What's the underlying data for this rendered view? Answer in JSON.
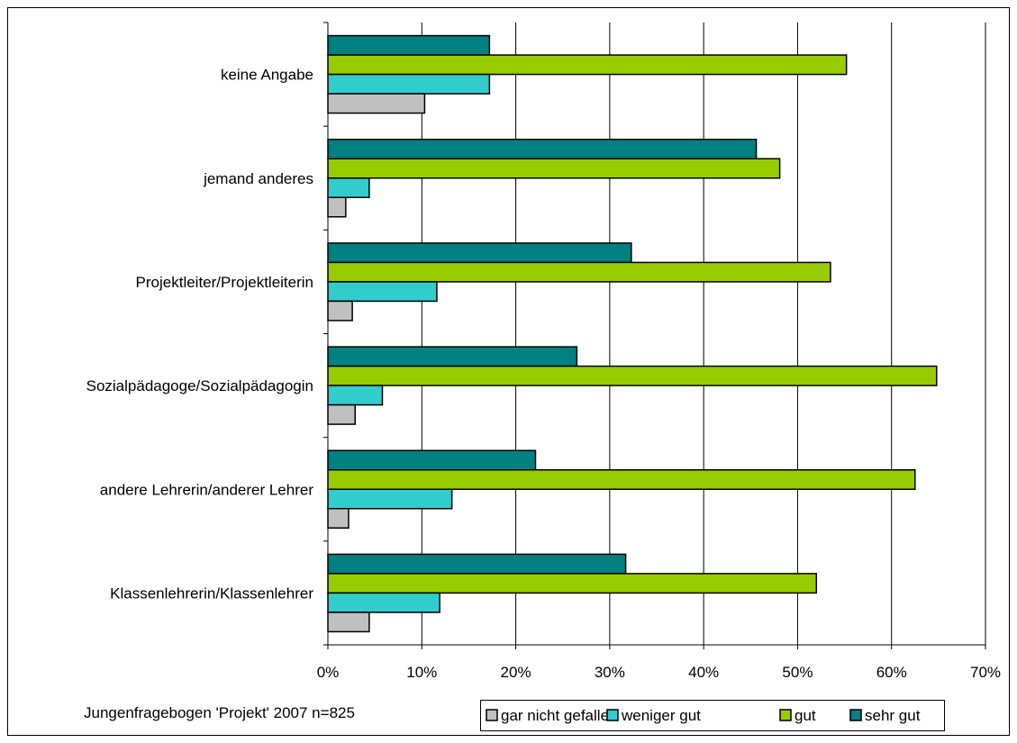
{
  "chart_data": {
    "type": "bar",
    "orientation": "horizontal",
    "categories": [
      "keine Angabe",
      "jemand anderes",
      "Projektleiter/Projektleiterin",
      "Sozialpädagoge/Sozialpädagogin",
      "andere Lehrerin/anderer Lehrer",
      "Klassenlehrerin/Klassenlehrer"
    ],
    "series": [
      {
        "name": "gar nicht gefallen",
        "color": "#c0c0c0",
        "values": [
          10.3,
          1.9,
          2.6,
          2.9,
          2.2,
          4.4
        ]
      },
      {
        "name": "weniger gut",
        "color": "#33cccc",
        "values": [
          17.2,
          4.4,
          11.6,
          5.8,
          13.2,
          11.9
        ]
      },
      {
        "name": "gut",
        "color": "#99cc00",
        "values": [
          55.2,
          48.1,
          53.5,
          64.8,
          62.5,
          52.0
        ]
      },
      {
        "name": "sehr gut",
        "color": "#008080",
        "values": [
          17.2,
          45.6,
          32.3,
          26.5,
          22.1,
          31.7
        ]
      }
    ],
    "xlim": [
      0,
      70
    ],
    "x_ticks": [
      "0%",
      "10%",
      "20%",
      "30%",
      "40%",
      "50%",
      "60%",
      "70%"
    ],
    "grid": "vertical",
    "legend_position": "bottom-right",
    "footnote": "Jungenfragebogen 'Projekt' 2007 n=825"
  }
}
